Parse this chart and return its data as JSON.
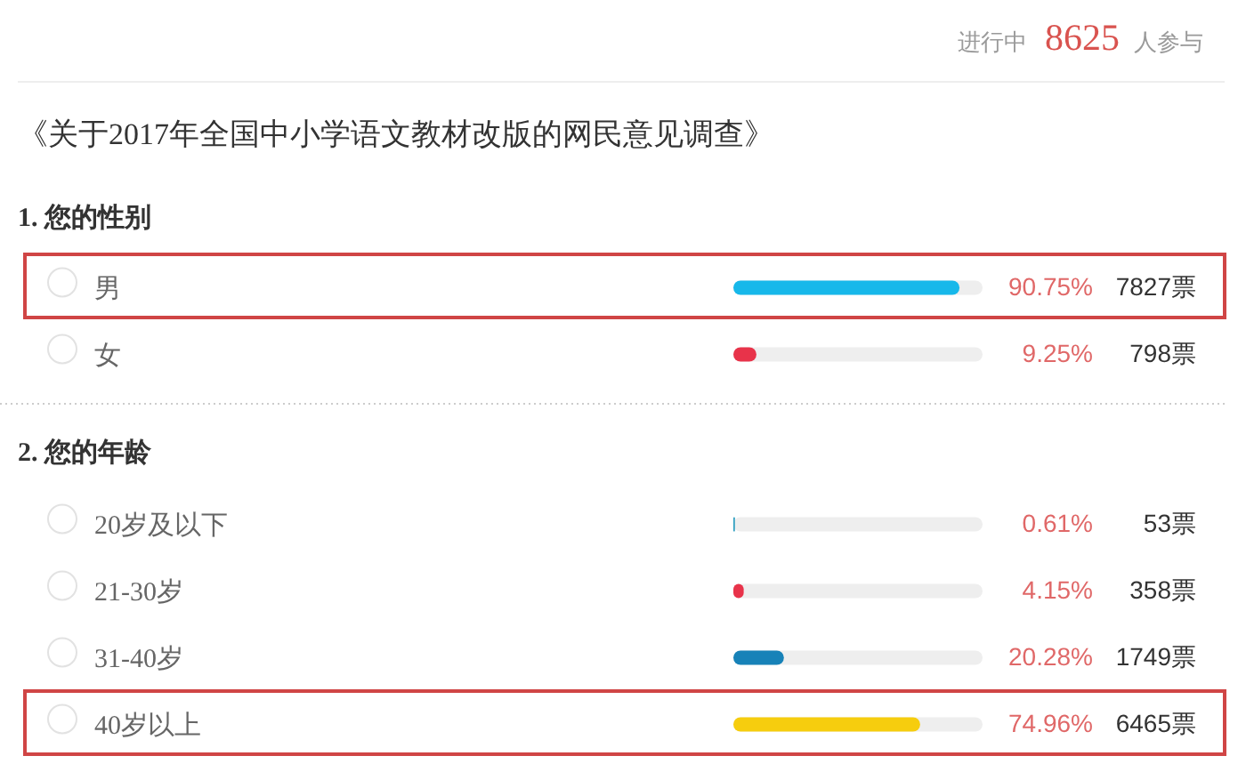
{
  "chart_data": [
    {
      "type": "bar",
      "orientation": "horizontal",
      "title": "《关于2017年全国中小学语文教材改版的网民意见调查》",
      "subtitle": "1. 您的性别",
      "categories": [
        "男",
        "女"
      ],
      "values": [
        90.75,
        9.25
      ],
      "colors": [
        "#17b8ea",
        "#e8334a"
      ],
      "xlim": [
        0,
        100
      ],
      "value_labels": [
        "90.75%",
        "9.25%"
      ],
      "tick_labels": "y",
      "annotations": [
        "进行中",
        "8625",
        "人参与",
        "7827票",
        "798票"
      ]
    },
    {
      "type": "bar",
      "orientation": "horizontal",
      "title": "2. 您的年龄",
      "categories": [
        "20岁及以下",
        "21-30岁",
        "31-40岁",
        "40岁以上"
      ],
      "values": [
        0.61,
        4.15,
        20.28,
        74.96
      ],
      "colors": [
        "#2b9dbf",
        "#e8334a",
        "#1782b8",
        "#f6cd0e"
      ],
      "xlim": [
        0,
        100
      ],
      "value_labels": [
        "0.61%",
        "4.15%",
        "20.28%",
        "74.96%"
      ],
      "tick_labels": "y",
      "annotations": [
        "53票",
        "358票",
        "1749票",
        "6465票"
      ]
    }
  ]
}
